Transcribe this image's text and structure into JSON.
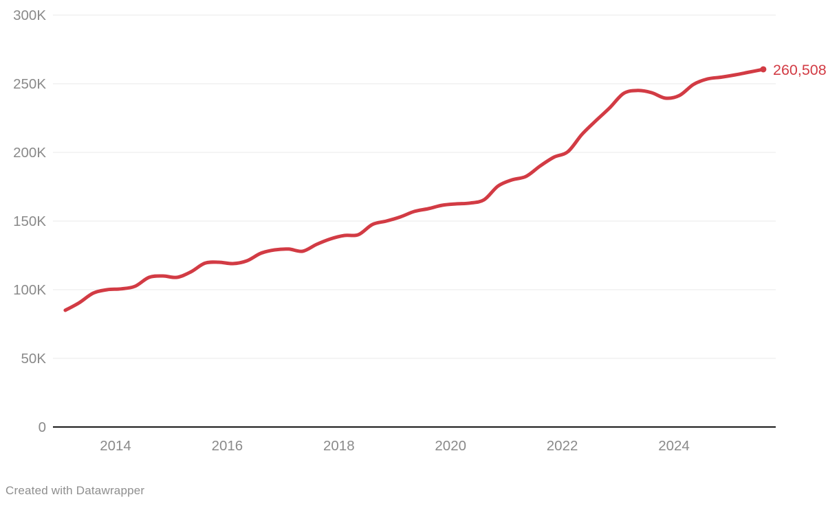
{
  "chart_data": {
    "type": "line",
    "title": "",
    "xlabel": "",
    "ylabel": "",
    "ylim": [
      0,
      300000
    ],
    "xlim": [
      2012.9,
      2025.8
    ],
    "grid": "horizontal",
    "legend": "none",
    "end_label": "260,508",
    "end_value": 260508,
    "x_years": [
      2013.1,
      2013.35,
      2013.6,
      2013.85,
      2014.1,
      2014.35,
      2014.6,
      2014.85,
      2015.1,
      2015.35,
      2015.6,
      2015.85,
      2016.1,
      2016.35,
      2016.6,
      2016.85,
      2017.1,
      2017.35,
      2017.6,
      2017.85,
      2018.1,
      2018.35,
      2018.6,
      2018.85,
      2019.1,
      2019.35,
      2019.6,
      2019.85,
      2020.1,
      2020.35,
      2020.6,
      2020.85,
      2021.1,
      2021.35,
      2021.6,
      2021.85,
      2022.1,
      2022.35,
      2022.6,
      2022.85,
      2023.1,
      2023.35,
      2023.6,
      2023.85,
      2024.1,
      2024.35,
      2024.6,
      2024.85,
      2025.1,
      2025.35,
      2025.6
    ],
    "series": [
      {
        "name": "value",
        "values": [
          85000,
          90500,
          97500,
          100000,
          100600,
          102500,
          109000,
          110000,
          109000,
          113000,
          119300,
          120000,
          119000,
          121000,
          126500,
          129000,
          129600,
          128000,
          133000,
          137000,
          139500,
          140100,
          147500,
          150000,
          153000,
          157000,
          159000,
          161500,
          162500,
          163100,
          165500,
          175500,
          180000,
          182500,
          190000,
          196500,
          200500,
          213000,
          223000,
          232500,
          243000,
          245100,
          243500,
          239500,
          241500,
          249500,
          253500,
          254800,
          256500,
          258500,
          260508
        ]
      }
    ],
    "y_ticks": [
      {
        "value": 0,
        "label": "0"
      },
      {
        "value": 50000,
        "label": "50K"
      },
      {
        "value": 100000,
        "label": "100K"
      },
      {
        "value": 150000,
        "label": "150K"
      },
      {
        "value": 200000,
        "label": "200K"
      },
      {
        "value": 250000,
        "label": "250K"
      },
      {
        "value": 300000,
        "label": "300K"
      }
    ],
    "x_ticks": [
      {
        "year": 2014,
        "label": "2014"
      },
      {
        "year": 2016,
        "label": "2016"
      },
      {
        "year": 2018,
        "label": "2018"
      },
      {
        "year": 2020,
        "label": "2020"
      },
      {
        "year": 2022,
        "label": "2022"
      },
      {
        "year": 2024,
        "label": "2024"
      }
    ],
    "colors": {
      "line": "#d23b44",
      "grid": "#e9e9e9",
      "baseline": "#1a1a1a",
      "tick_text": "#8a8a8a"
    }
  },
  "footer": {
    "credit": "Created with Datawrapper"
  }
}
